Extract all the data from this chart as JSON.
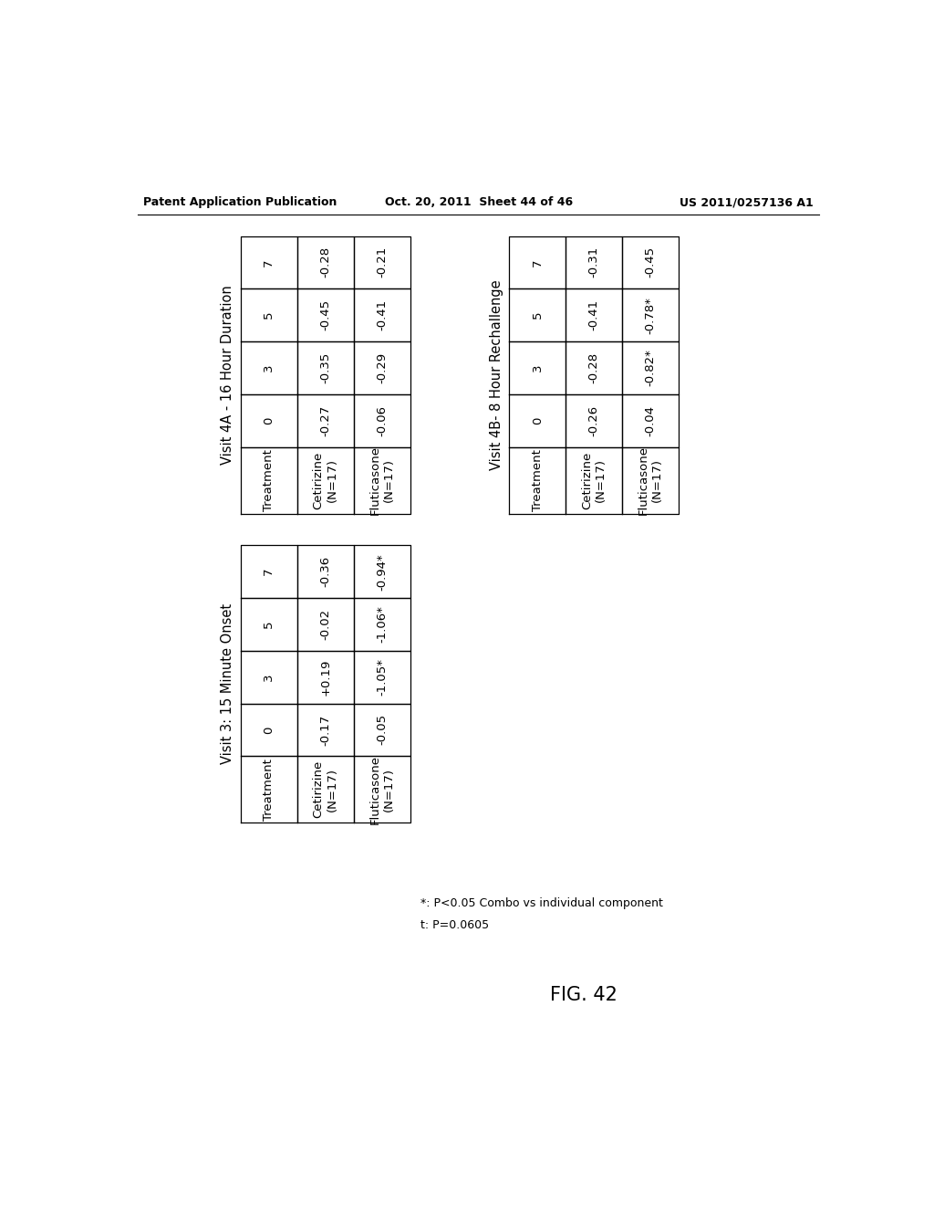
{
  "header_left": "Patent Application Publication",
  "header_center": "Oct. 20, 2011  Sheet 44 of 46",
  "header_right": "US 2011/0257136 A1",
  "fig_label": "FIG. 42",
  "footnote1": "*: P<0.05 Combo vs individual component",
  "footnote2": "t: P=0.0605",
  "table_visit3": {
    "title": "Visit 3: 15 Minute Onset",
    "cols": [
      "Treatment",
      "0",
      "3",
      "5",
      "7"
    ],
    "rows": [
      [
        "Cetirizine\n(N=17)",
        "-0.17",
        "+0.19",
        "-0.02",
        "-0.36"
      ],
      [
        "Fluticasone\n(N=17)",
        "-0.05",
        "-1.05*",
        "-1.06*",
        "-0.94*"
      ]
    ]
  },
  "table_visit4a": {
    "title": "Visit 4A - 16 Hour Duration",
    "cols": [
      "Treatment",
      "0",
      "3",
      "5",
      "7"
    ],
    "rows": [
      [
        "Cetirizine\n(N=17)",
        "-0.27",
        "-0.35",
        "-0.45",
        "-0.28"
      ],
      [
        "Fluticasone\n(N=17)",
        "-0.06",
        "-0.29",
        "-0.41",
        "-0.21"
      ]
    ]
  },
  "table_visit4b": {
    "title": "Visit 4B- 8 Hour Rechallenge",
    "cols": [
      "Treatment",
      "0",
      "3",
      "5",
      "7"
    ],
    "rows": [
      [
        "Cetirizine\n(N=17)",
        "-0.26",
        "-0.28",
        "-0.41",
        "-0.31"
      ],
      [
        "Fluticasone\n(N=17)",
        "-0.04",
        "-0.82*",
        "-0.78*",
        "-0.45"
      ]
    ]
  },
  "bg_color": "#ffffff",
  "text_color": "#000000",
  "line_color": "#000000"
}
